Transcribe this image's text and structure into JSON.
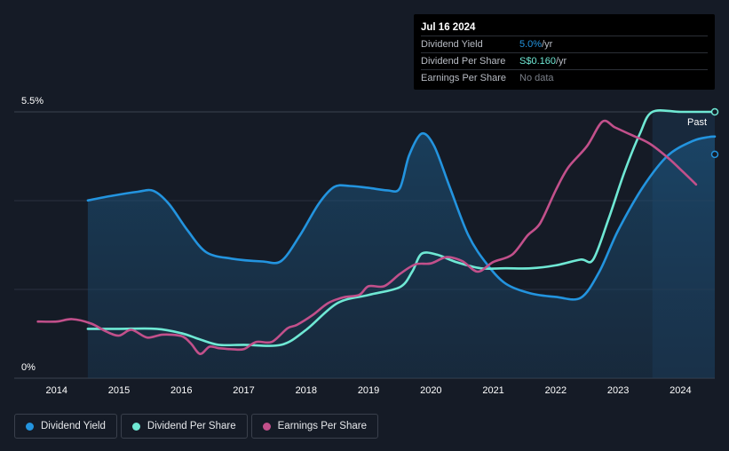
{
  "tooltip": {
    "date": "Jul 16 2024",
    "rows": [
      {
        "label": "Dividend Yield",
        "value": "5.0%",
        "unit": " /yr"
      },
      {
        "label": "Dividend Per Share",
        "value": "S$0.160",
        "unit": " /yr"
      },
      {
        "label": "Earnings Per Share",
        "value": "No data",
        "unit": ""
      }
    ]
  },
  "past_label": "Past",
  "legend": [
    {
      "label": "Dividend Yield",
      "color": "#2394df"
    },
    {
      "label": "Dividend Per Share",
      "color": "#6fe8d4"
    },
    {
      "label": "Earnings Per Share",
      "color": "#c2508b"
    }
  ],
  "chart_data": {
    "type": "line",
    "title": "",
    "xlabel": "",
    "ylabel": "",
    "x_ticks": [
      "2014",
      "2015",
      "2016",
      "2017",
      "2018",
      "2019",
      "2020",
      "2021",
      "2022",
      "2023",
      "2024"
    ],
    "y_tick_labels": [
      "5.5%",
      "0%"
    ],
    "ylim": [
      0,
      5.5
    ],
    "xlim": [
      2013.5,
      2024.55
    ],
    "forecast_start": 2023.55,
    "series": [
      {
        "name": "Dividend Yield",
        "color": "#2394df",
        "area": true,
        "x": [
          2014.5,
          2014.9,
          2015.3,
          2015.55,
          2015.8,
          2016.1,
          2016.4,
          2016.8,
          2017.3,
          2017.6,
          2017.9,
          2018.2,
          2018.45,
          2018.7,
          2019.0,
          2019.3,
          2019.5,
          2019.65,
          2019.85,
          2020.05,
          2020.3,
          2020.6,
          2020.9,
          2021.2,
          2021.6,
          2022.0,
          2022.4,
          2022.7,
          2023.0,
          2023.4,
          2023.8,
          2024.2,
          2024.45,
          2024.55
        ],
        "values": [
          3.67,
          3.77,
          3.85,
          3.87,
          3.6,
          3.05,
          2.6,
          2.47,
          2.41,
          2.42,
          2.95,
          3.6,
          3.95,
          3.97,
          3.93,
          3.88,
          3.92,
          4.6,
          5.05,
          4.8,
          3.95,
          2.95,
          2.35,
          1.95,
          1.75,
          1.68,
          1.66,
          2.2,
          3.05,
          3.95,
          4.6,
          4.9,
          4.98,
          4.99
        ]
      },
      {
        "name": "Dividend Per Share",
        "color": "#6fe8d4",
        "area": false,
        "x": [
          2014.5,
          2015.0,
          2015.6,
          2016.0,
          2016.3,
          2016.6,
          2017.0,
          2017.6,
          2018.0,
          2018.5,
          2019.0,
          2019.5,
          2019.7,
          2019.85,
          2020.1,
          2020.4,
          2020.8,
          2021.2,
          2021.6,
          2022.0,
          2022.4,
          2022.6,
          2022.85,
          2023.1,
          2023.35,
          2023.55,
          2024.0,
          2024.55
        ],
        "values": [
          1.02,
          1.02,
          1.02,
          0.93,
          0.8,
          0.69,
          0.69,
          0.69,
          1.0,
          1.55,
          1.72,
          1.88,
          2.2,
          2.57,
          2.55,
          2.4,
          2.27,
          2.27,
          2.27,
          2.33,
          2.45,
          2.45,
          3.3,
          4.25,
          5.05,
          5.5,
          5.5,
          5.5
        ]
      },
      {
        "name": "Earnings Per Share",
        "color": "#c2508b",
        "area": false,
        "x": [
          2013.7,
          2014.0,
          2014.25,
          2014.55,
          2014.8,
          2015.0,
          2015.2,
          2015.45,
          2015.7,
          2016.0,
          2016.15,
          2016.3,
          2016.45,
          2016.6,
          2016.8,
          2017.0,
          2017.2,
          2017.45,
          2017.7,
          2017.85,
          2018.1,
          2018.35,
          2018.6,
          2018.85,
          2019.0,
          2019.25,
          2019.5,
          2019.75,
          2020.0,
          2020.25,
          2020.5,
          2020.75,
          2021.0,
          2021.3,
          2021.55,
          2021.75,
          2022.0,
          2022.2,
          2022.5,
          2022.75,
          2022.95,
          2023.2,
          2023.5,
          2023.8,
          2024.05,
          2024.25
        ],
        "values": [
          1.17,
          1.17,
          1.22,
          1.13,
          0.96,
          0.88,
          1.0,
          0.84,
          0.9,
          0.87,
          0.72,
          0.5,
          0.65,
          0.62,
          0.6,
          0.6,
          0.75,
          0.75,
          1.03,
          1.1,
          1.3,
          1.55,
          1.67,
          1.72,
          1.9,
          1.9,
          2.15,
          2.35,
          2.37,
          2.5,
          2.42,
          2.2,
          2.4,
          2.55,
          2.95,
          3.2,
          3.88,
          4.35,
          4.79,
          5.3,
          5.18,
          5.03,
          4.85,
          4.55,
          4.25,
          4.0
        ]
      }
    ]
  }
}
